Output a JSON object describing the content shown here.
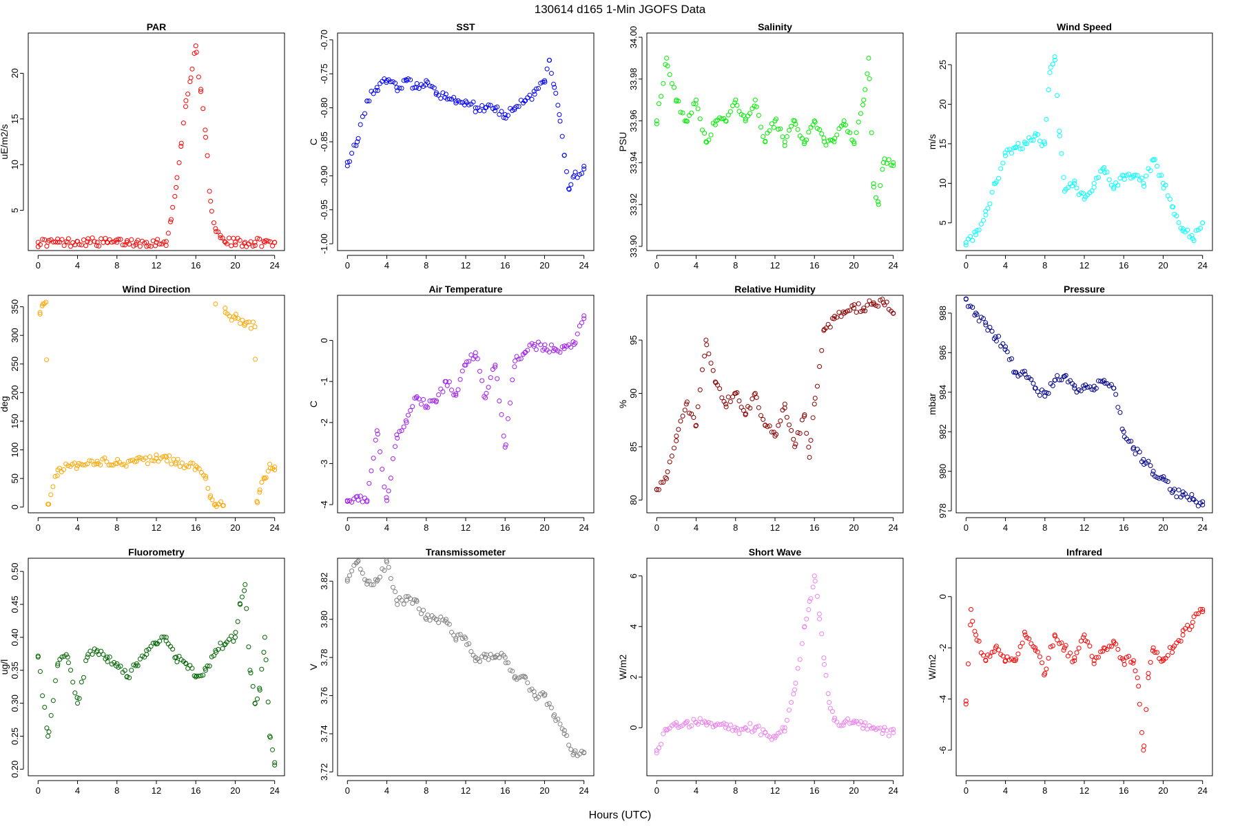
{
  "figure": {
    "title": "130614   d165   1-Min  JGOFS Data",
    "xlabel": "Hours (UTC)"
  },
  "chart_data": [
    {
      "type": "scatter",
      "title": "PAR",
      "ylabel": "uE/m2/s",
      "color": "#ff0000",
      "xlim": [
        -1,
        25
      ],
      "ylim": [
        0.6,
        24.4
      ],
      "xticks": [
        0,
        4,
        8,
        12,
        16,
        20,
        24
      ],
      "yticks": [
        5,
        10,
        15,
        20
      ],
      "series": [
        {
          "x": [
            0,
            1,
            2,
            3,
            4,
            5,
            6,
            7,
            8,
            9,
            10,
            11,
            12,
            13,
            13.5,
            14,
            14.5,
            15,
            15.5,
            16,
            16.5,
            17,
            17.5,
            18,
            18.5,
            19,
            20,
            21,
            22,
            23,
            24
          ],
          "y": [
            1.5,
            1.5,
            1.5,
            1.5,
            1.6,
            1.6,
            1.5,
            1.5,
            1.5,
            1.5,
            1.5,
            1.5,
            1.5,
            1.6,
            4,
            7.5,
            12,
            17,
            19.5,
            23,
            18,
            13,
            6,
            3,
            2,
            1.5,
            1.5,
            1.5,
            1.5,
            1.5,
            1.5
          ]
        }
      ]
    },
    {
      "type": "scatter",
      "title": "SST",
      "ylabel": "C",
      "color": "#0000ff",
      "xlim": [
        -1,
        25
      ],
      "ylim": [
        -1.01,
        -0.69
      ],
      "xticks": [
        0,
        4,
        8,
        12,
        16,
        20,
        24
      ],
      "yticks": [
        -0.7,
        -0.75,
        -0.8,
        -0.85,
        -0.9,
        -0.95,
        -1.0
      ],
      "series": [
        {
          "x": [
            0,
            1,
            2,
            3,
            4,
            5,
            6,
            7,
            8,
            9,
            10,
            11,
            12,
            13,
            14,
            15,
            16,
            17,
            18,
            19,
            20,
            20.5,
            21,
            21.5,
            22,
            22.5,
            23,
            24
          ],
          "y": [
            -0.88,
            -0.85,
            -0.79,
            -0.77,
            -0.76,
            -0.77,
            -0.76,
            -0.77,
            -0.76,
            -0.78,
            -0.78,
            -0.79,
            -0.79,
            -0.8,
            -0.8,
            -0.8,
            -0.81,
            -0.8,
            -0.79,
            -0.78,
            -0.76,
            -0.73,
            -0.77,
            -0.81,
            -0.87,
            -0.92,
            -0.9,
            -0.89
          ]
        }
      ]
    },
    {
      "type": "scatter",
      "title": "Salinity",
      "ylabel": "PSU",
      "color": "#00ee00",
      "xlim": [
        -1,
        25
      ],
      "ylim": [
        33.898,
        34.002
      ],
      "xticks": [
        0,
        4,
        8,
        12,
        16,
        20,
        24
      ],
      "yticks": [
        33.9,
        33.92,
        33.94,
        33.96,
        33.98,
        34.0
      ],
      "series": [
        {
          "x": [
            0,
            1,
            2,
            3,
            4,
            5,
            6,
            7,
            8,
            9,
            10,
            11,
            12,
            13,
            14,
            15,
            16,
            17,
            18,
            19,
            20,
            21,
            21.5,
            22,
            22.5,
            23,
            24
          ],
          "y": [
            33.96,
            33.99,
            33.97,
            33.96,
            33.97,
            33.95,
            33.96,
            33.96,
            33.97,
            33.96,
            33.97,
            33.95,
            33.96,
            33.95,
            33.96,
            33.95,
            33.96,
            33.95,
            33.95,
            33.96,
            33.95,
            33.97,
            33.99,
            33.93,
            33.92,
            33.94,
            33.94
          ]
        }
      ]
    },
    {
      "type": "scatter",
      "title": "Wind Speed",
      "ylabel": "m/s",
      "color": "#00ffff",
      "xlim": [
        -1,
        25
      ],
      "ylim": [
        1.5,
        29
      ],
      "xticks": [
        0,
        4,
        8,
        12,
        16,
        20,
        24
      ],
      "yticks": [
        5,
        10,
        15,
        20,
        25
      ],
      "series": [
        {
          "x": [
            0,
            1,
            2,
            3,
            4,
            5,
            6,
            7,
            8,
            8.5,
            9,
            9.5,
            10,
            11,
            12,
            13,
            14,
            15,
            16,
            17,
            18,
            19,
            20,
            21,
            22,
            23,
            24
          ],
          "y": [
            2.5,
            3.5,
            6,
            10,
            13.5,
            14.5,
            15,
            16,
            15,
            24,
            26,
            16,
            9,
            10,
            8,
            10,
            12,
            9.5,
            11,
            11,
            10,
            13,
            10,
            7,
            4,
            3,
            5
          ]
        }
      ]
    },
    {
      "type": "scatter",
      "title": "Wind Direction",
      "ylabel": "deg",
      "color": "#ffa500",
      "xlim": [
        -1,
        25
      ],
      "ylim": [
        -10,
        370
      ],
      "xticks": [
        0,
        4,
        8,
        12,
        16,
        20,
        24
      ],
      "yticks": [
        0,
        50,
        100,
        150,
        200,
        250,
        300,
        350
      ],
      "series": [
        {
          "x": [
            0.2,
            0.5,
            0.8,
            1,
            2,
            4,
            6,
            8,
            10,
            12,
            13,
            14,
            16,
            17,
            17.5,
            18,
            18.8,
            18,
            19,
            20,
            21,
            22,
            22.2,
            22.5,
            23,
            23.5,
            24
          ],
          "y": [
            340,
            355,
            358,
            5,
            65,
            72,
            80,
            76,
            80,
            85,
            88,
            78,
            72,
            50,
            20,
            5,
            3,
            355,
            340,
            330,
            320,
            315,
            10,
            30,
            50,
            75,
            65
          ]
        }
      ]
    },
    {
      "type": "scatter",
      "title": "Air Temperature",
      "ylabel": "C",
      "color": "#a020f0",
      "xlim": [
        -1,
        25
      ],
      "ylim": [
        -4.2,
        1.1
      ],
      "xticks": [
        0,
        4,
        8,
        12,
        16,
        20,
        24
      ],
      "yticks": [
        0,
        -1,
        -2,
        -3,
        -4
      ],
      "series": [
        {
          "x": [
            0,
            1,
            2,
            3,
            4,
            5,
            6,
            7,
            8,
            9,
            10,
            11,
            12,
            13,
            14,
            15,
            16,
            17,
            18,
            19,
            20,
            21,
            22,
            23,
            24
          ],
          "y": [
            -3.9,
            -3.8,
            -3.9,
            -2.2,
            -3.9,
            -2.3,
            -2.0,
            -1.4,
            -1.6,
            -1.5,
            -1.0,
            -1.3,
            -0.6,
            -0.3,
            -1.4,
            -0.6,
            -2.6,
            -0.5,
            -0.3,
            -0.1,
            -0.2,
            -0.2,
            -0.2,
            -0.1,
            0.6
          ]
        }
      ]
    },
    {
      "type": "scatter",
      "title": "Relative Humidity",
      "ylabel": "%",
      "color": "#8b0000",
      "xlim": [
        -1,
        25
      ],
      "ylim": [
        78.8,
        99.2
      ],
      "xticks": [
        0,
        4,
        8,
        12,
        16,
        20,
        24
      ],
      "yticks": [
        80,
        85,
        90,
        95
      ],
      "series": [
        {
          "x": [
            0,
            1,
            2,
            3,
            4,
            5,
            6,
            7,
            8,
            9,
            10,
            11,
            12,
            13,
            14,
            15,
            15.5,
            16,
            17,
            18,
            19,
            20,
            21,
            22,
            23,
            24
          ],
          "y": [
            81,
            82,
            86,
            89,
            87,
            95,
            91,
            89,
            90,
            88,
            90,
            87,
            86,
            89,
            85,
            88,
            84,
            89,
            96,
            97,
            97.5,
            98,
            98,
            98.5,
            98.5,
            97.5
          ]
        }
      ]
    },
    {
      "type": "scatter",
      "title": "Pressure",
      "ylabel": "mbar",
      "color": "#00008b",
      "xlim": [
        -1,
        25
      ],
      "ylim": [
        977.9,
        988.9
      ],
      "xticks": [
        0,
        4,
        8,
        12,
        16,
        20,
        24
      ],
      "yticks": [
        978,
        980,
        982,
        984,
        986,
        988
      ],
      "series": [
        {
          "x": [
            0,
            1,
            2,
            3,
            4,
            5,
            6,
            7,
            8,
            9,
            10,
            11,
            12,
            13,
            14,
            15,
            16,
            17,
            18,
            19,
            20,
            21,
            22,
            23,
            24
          ],
          "y": [
            988.7,
            988,
            987.4,
            986.8,
            986.3,
            985,
            984.9,
            984.2,
            983.8,
            984.6,
            984.8,
            984.2,
            984.2,
            984.3,
            984.6,
            984.2,
            982,
            981.2,
            980.6,
            980,
            979.6,
            979,
            978.8,
            978.6,
            978.3
          ]
        }
      ]
    },
    {
      "type": "scatter",
      "title": "Fluorometry",
      "ylabel": "ug/l",
      "color": "#006400",
      "xlim": [
        -1,
        25
      ],
      "ylim": [
        0.19,
        0.52
      ],
      "xticks": [
        0,
        4,
        8,
        12,
        16,
        20,
        24
      ],
      "yticks": [
        0.2,
        0.25,
        0.3,
        0.35,
        0.4,
        0.45,
        0.5
      ],
      "series": [
        {
          "x": [
            0,
            1,
            2,
            3,
            4,
            5,
            6,
            7,
            8,
            9,
            10,
            11,
            12,
            13,
            14,
            15,
            16,
            17,
            18,
            19,
            20,
            20.5,
            21,
            21.5,
            22,
            22.5,
            23,
            23.5,
            24
          ],
          "y": [
            0.37,
            0.25,
            0.36,
            0.37,
            0.3,
            0.37,
            0.38,
            0.37,
            0.36,
            0.34,
            0.36,
            0.38,
            0.39,
            0.4,
            0.37,
            0.36,
            0.34,
            0.35,
            0.38,
            0.39,
            0.4,
            0.45,
            0.48,
            0.35,
            0.3,
            0.32,
            0.4,
            0.25,
            0.21
          ]
        }
      ]
    },
    {
      "type": "scatter",
      "title": "Transmissometer",
      "ylabel": "V",
      "color": "#808080",
      "xlim": [
        -1,
        25
      ],
      "ylim": [
        3.718,
        3.832
      ],
      "xticks": [
        0,
        4,
        8,
        12,
        16,
        20,
        24
      ],
      "yticks": [
        3.72,
        3.74,
        3.76,
        3.78,
        3.8,
        3.82
      ],
      "series": [
        {
          "x": [
            0,
            1,
            2,
            3,
            4,
            5,
            6,
            7,
            8,
            9,
            10,
            11,
            12,
            13,
            14,
            15,
            16,
            17,
            18,
            19,
            20,
            21,
            22,
            23,
            24
          ],
          "y": [
            3.82,
            3.83,
            3.82,
            3.82,
            3.83,
            3.81,
            3.81,
            3.81,
            3.8,
            3.8,
            3.8,
            3.79,
            3.79,
            3.78,
            3.78,
            3.78,
            3.78,
            3.77,
            3.77,
            3.76,
            3.76,
            3.75,
            3.74,
            3.73,
            3.73
          ]
        }
      ]
    },
    {
      "type": "scatter",
      "title": "Short Wave",
      "ylabel": "W/m2",
      "color": "#ee82ee",
      "xlim": [
        -1,
        25
      ],
      "ylim": [
        -1.9,
        6.7
      ],
      "xticks": [
        0,
        4,
        8,
        12,
        16,
        20,
        24
      ],
      "yticks": [
        0,
        2,
        4,
        6
      ],
      "series": [
        {
          "x": [
            0,
            1,
            2,
            3,
            4,
            5,
            6,
            7,
            8,
            9,
            10,
            11,
            12,
            13,
            14,
            15,
            15.5,
            16,
            16.5,
            17,
            17.5,
            18,
            19,
            20,
            21,
            22,
            23,
            24
          ],
          "y": [
            -1.0,
            -0.1,
            0.1,
            0.2,
            0.2,
            0.2,
            0.1,
            0.0,
            -0.1,
            0.0,
            0.0,
            -0.2,
            -0.4,
            0.0,
            1.5,
            4.0,
            5.0,
            6.0,
            4.5,
            2.5,
            1.0,
            0.3,
            0.2,
            0.2,
            0.1,
            0.0,
            -0.1,
            -0.2
          ]
        }
      ]
    },
    {
      "type": "scatter",
      "title": "Infrared",
      "ylabel": "W/m2",
      "color": "#ff0000",
      "xlim": [
        -1,
        25
      ],
      "ylim": [
        -7.0,
        1.5
      ],
      "xticks": [
        0,
        4,
        8,
        12,
        16,
        20,
        24
      ],
      "yticks": [
        0,
        -2,
        -4,
        -6
      ],
      "series": [
        {
          "x": [
            0,
            0.5,
            1,
            2,
            3,
            4,
            5,
            6,
            7,
            8,
            9,
            10,
            11,
            12,
            13,
            14,
            15,
            16,
            17,
            17.5,
            18,
            18.5,
            19,
            20,
            21,
            22,
            23,
            24
          ],
          "y": [
            -4.2,
            -0.5,
            -1.5,
            -2.5,
            -2.0,
            -2.5,
            -2.5,
            -1.5,
            -2.0,
            -3.0,
            -1.5,
            -2.0,
            -2.5,
            -1.5,
            -2.5,
            -2.0,
            -1.8,
            -2.5,
            -2.5,
            -3.5,
            -6.0,
            -3.0,
            -2.0,
            -2.5,
            -2.0,
            -1.5,
            -1.0,
            -0.5
          ]
        }
      ]
    }
  ]
}
